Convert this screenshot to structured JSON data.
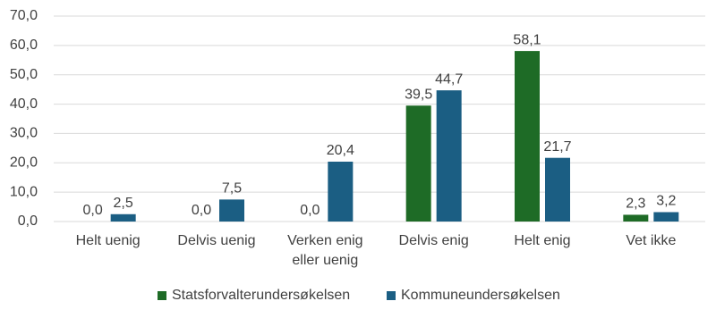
{
  "chart_data": {
    "type": "bar",
    "categories": [
      "Helt uenig",
      "Delvis uenig",
      "Verken enig eller uenig",
      "Delvis enig",
      "Helt enig",
      "Vet ikke"
    ],
    "series": [
      {
        "name": "Statsforvalterundersøkelsen",
        "color": "#1e6b26",
        "values": [
          0,
          0,
          0,
          39.5,
          58.1,
          2.3
        ],
        "value_labels": [
          "0,0",
          "0,0",
          "0,0",
          "39,5",
          "58,1",
          "2,3"
        ]
      },
      {
        "name": "Kommuneundersøkelsen",
        "color": "#1b5e83",
        "values": [
          2.5,
          7.5,
          20.4,
          44.7,
          21.7,
          3.2
        ],
        "value_labels": [
          "2,5",
          "7,5",
          "20,4",
          "44,7",
          "21,7",
          "3,2"
        ]
      }
    ],
    "ylim": [
      0,
      70
    ],
    "yticks": [
      {
        "value": 0,
        "label": "0,0"
      },
      {
        "value": 10,
        "label": "10,0"
      },
      {
        "value": 20,
        "label": "20,0"
      },
      {
        "value": 30,
        "label": "30,0"
      },
      {
        "value": 40,
        "label": "40,0"
      },
      {
        "value": 50,
        "label": "50,0"
      },
      {
        "value": 60,
        "label": "60,0"
      },
      {
        "value": 70,
        "label": "70,0"
      }
    ],
    "grid": true,
    "legend": "bottom"
  }
}
